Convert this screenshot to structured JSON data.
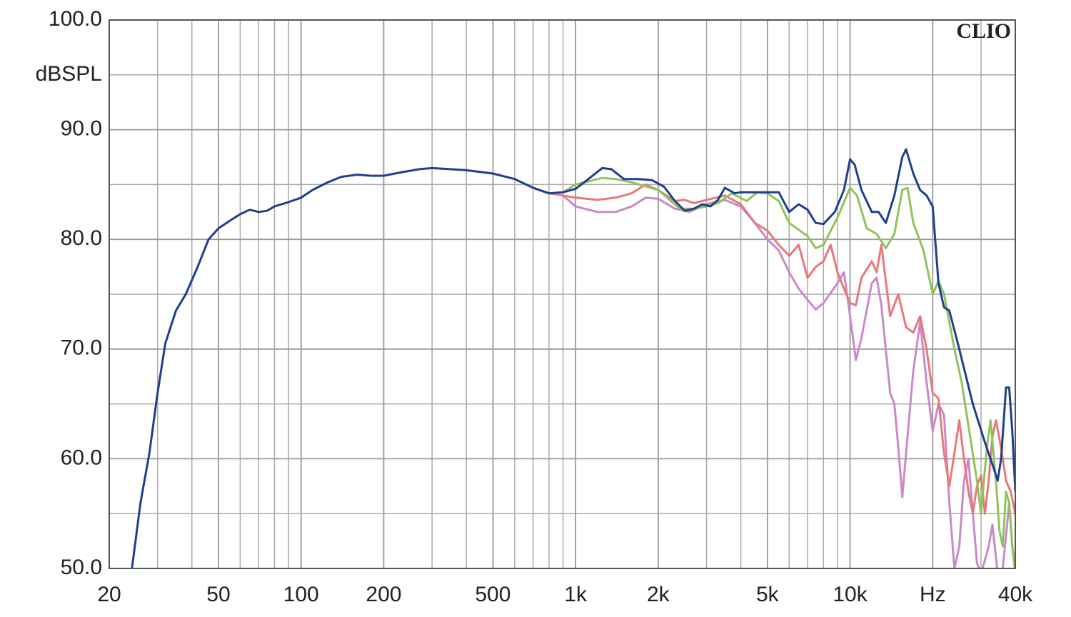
{
  "chart_data": {
    "type": "line",
    "title": "CLIO",
    "ylabel": "dBSPL",
    "xscale": "log",
    "grid": true,
    "xlim": [
      20,
      40000
    ],
    "ylim": [
      50,
      100
    ],
    "xticks": [
      20,
      50,
      100,
      200,
      500,
      {
        "value": 1000,
        "label": "1k"
      },
      {
        "value": 2000,
        "label": "2k"
      },
      {
        "value": 5000,
        "label": "5k"
      },
      {
        "value": 10000,
        "label": "10k"
      },
      {
        "value": 20000,
        "label": "Hz"
      },
      {
        "value": 40000,
        "label": "40k"
      }
    ],
    "xminor": [
      30,
      40,
      60,
      70,
      80,
      90,
      300,
      400,
      600,
      700,
      800,
      900,
      3000,
      4000,
      6000,
      7000,
      8000,
      9000,
      30000
    ],
    "yticks": [
      {
        "value": 50,
        "label": "50.0"
      },
      {
        "value": 60,
        "label": "60.0"
      },
      {
        "value": 70,
        "label": "70.0"
      },
      {
        "value": 80,
        "label": "80.0"
      },
      {
        "value": 90,
        "label": "90.0"
      },
      {
        "value": 100,
        "label": "100.0"
      }
    ],
    "yminor": [
      55,
      65,
      75,
      85,
      95
    ],
    "series": [
      {
        "color": "#c98ac9",
        "x": [
          700,
          800,
          900,
          1000,
          1200,
          1400,
          1600,
          1800,
          2000,
          2300,
          2600,
          3000,
          3500,
          4000,
          4500,
          5000,
          5500,
          6000,
          6500,
          7000,
          7500,
          8000,
          9000,
          9500,
          10000,
          10500,
          11000,
          12000,
          12500,
          13000,
          14000,
          14500,
          15000,
          15500,
          16000,
          17000,
          18000,
          19000,
          20000,
          21000,
          22000,
          23000,
          24000,
          25000,
          26000,
          27000,
          28000,
          29000,
          30000,
          32000,
          33000,
          34000,
          35000,
          36000,
          37000,
          38000,
          39000,
          40000
        ],
        "values": [
          84.7,
          84.2,
          84,
          83,
          82.5,
          82.5,
          83,
          83.8,
          83.7,
          82.8,
          82.5,
          83.2,
          83.6,
          83,
          81.5,
          80,
          79,
          77,
          75.5,
          74.5,
          73.6,
          74.2,
          76,
          77,
          73,
          69,
          71,
          76,
          76.5,
          74,
          66,
          65,
          61,
          56.5,
          60.5,
          68,
          72.5,
          67,
          62.5,
          65,
          64,
          56,
          50,
          52,
          58,
          60,
          55,
          50.5,
          49.5,
          52,
          54,
          51,
          48,
          50,
          53,
          56,
          52,
          50
        ]
      },
      {
        "color": "#e8787a",
        "x": [
          700,
          800,
          900,
          1000,
          1200,
          1400,
          1600,
          1800,
          2000,
          2300,
          2500,
          2700,
          3000,
          3500,
          4000,
          4500,
          5000,
          5500,
          6000,
          6500,
          7000,
          7500,
          8000,
          8500,
          9000,
          9500,
          10000,
          10500,
          11000,
          12000,
          12500,
          13000,
          14000,
          15000,
          16000,
          17000,
          18000,
          19000,
          20000,
          21000,
          22000,
          23000,
          24000,
          25000,
          26000,
          27000,
          28000,
          29000,
          30000,
          31000,
          32000,
          33000,
          34000,
          35500,
          37000,
          38500,
          40000
        ],
        "values": [
          84.7,
          84.2,
          84,
          83.8,
          83.6,
          83.8,
          84.2,
          85,
          84.5,
          83.5,
          83.6,
          83.3,
          83.6,
          84,
          83.2,
          81.5,
          80.8,
          79.5,
          78.5,
          79.5,
          76.5,
          77.5,
          78,
          79.5,
          77,
          75.5,
          74.2,
          74,
          76.5,
          78,
          77,
          79.5,
          73,
          75,
          72,
          71.5,
          73,
          70,
          66,
          65.5,
          60.5,
          57.5,
          60.5,
          63.5,
          60,
          57,
          55,
          57.5,
          58.5,
          55,
          58,
          62,
          63.5,
          61,
          58,
          57,
          55
        ]
      },
      {
        "color": "#8fc45a",
        "x": [
          700,
          800,
          900,
          1000,
          1250,
          1400,
          1600,
          2000,
          2400,
          2700,
          3000,
          3300,
          3700,
          4200,
          4600,
          5000,
          5500,
          6000,
          7000,
          7500,
          8000,
          9000,
          10000,
          10600,
          11500,
          12500,
          13500,
          14500,
          15500,
          16200,
          17000,
          18500,
          20000,
          21000,
          22000,
          24000,
          25500,
          27000,
          29000,
          30000,
          31500,
          32500,
          34000,
          35000,
          36000,
          37000,
          38000,
          39000,
          40000
        ],
        "values": [
          84.7,
          84.2,
          84.3,
          85,
          85.6,
          85.5,
          85.2,
          84.5,
          82.8,
          82.8,
          83,
          83.3,
          84.2,
          83.5,
          84.3,
          84.2,
          83.5,
          81.5,
          80.3,
          79.2,
          79.5,
          82,
          84.7,
          84,
          81,
          80.5,
          79.2,
          80.5,
          84.5,
          84.7,
          81.5,
          79,
          75,
          76.2,
          75,
          70,
          67,
          63,
          58,
          55,
          61,
          63.5,
          58,
          53.5,
          52,
          57,
          56,
          52,
          49.5
        ]
      },
      {
        "color": "#1f3f8f",
        "x": [
          24.2,
          26,
          28,
          30,
          32,
          35,
          38,
          42,
          46,
          50,
          55,
          60,
          65,
          70,
          75,
          80,
          90,
          100,
          110,
          125,
          140,
          160,
          180,
          200,
          230,
          270,
          300,
          350,
          400,
          500,
          600,
          700,
          800,
          900,
          1000,
          1100,
          1250,
          1350,
          1500,
          1700,
          1900,
          2100,
          2300,
          2500,
          2700,
          2900,
          3100,
          3300,
          3500,
          3800,
          4000,
          4500,
          5000,
          5500,
          6000,
          6500,
          7000,
          7500,
          8000,
          8800,
          9500,
          10000,
          10400,
          11000,
          12000,
          12700,
          13500,
          14500,
          15500,
          16000,
          17000,
          18000,
          19000,
          20000,
          21000,
          22000,
          23000,
          25000,
          28000,
          31000,
          33000,
          34500,
          35500,
          37000,
          38000,
          39000,
          40000
        ],
        "values": [
          50,
          56,
          60.5,
          66,
          70.5,
          73.5,
          75,
          77.5,
          80,
          81,
          81.7,
          82.3,
          82.7,
          82.5,
          82.6,
          83,
          83.4,
          83.8,
          84.5,
          85.2,
          85.7,
          85.9,
          85.8,
          85.8,
          86.1,
          86.4,
          86.5,
          86.4,
          86.3,
          86,
          85.5,
          84.7,
          84.2,
          84.3,
          84.6,
          85.4,
          86.5,
          86.4,
          85.5,
          85.5,
          85.4,
          84.8,
          83.5,
          82.6,
          82.8,
          83.2,
          83,
          83.6,
          84.7,
          84.2,
          84.3,
          84.3,
          84.3,
          84.3,
          82.5,
          83.2,
          82.7,
          81.5,
          81.4,
          82.5,
          84.5,
          87.3,
          86.8,
          84.5,
          82.5,
          82.5,
          81.5,
          84,
          87.5,
          88.2,
          86,
          84.5,
          84,
          83,
          76,
          73.8,
          73.5,
          70,
          65,
          61.5,
          59.5,
          58,
          60,
          66.5,
          66.5,
          62.5,
          57
        ]
      }
    ]
  }
}
